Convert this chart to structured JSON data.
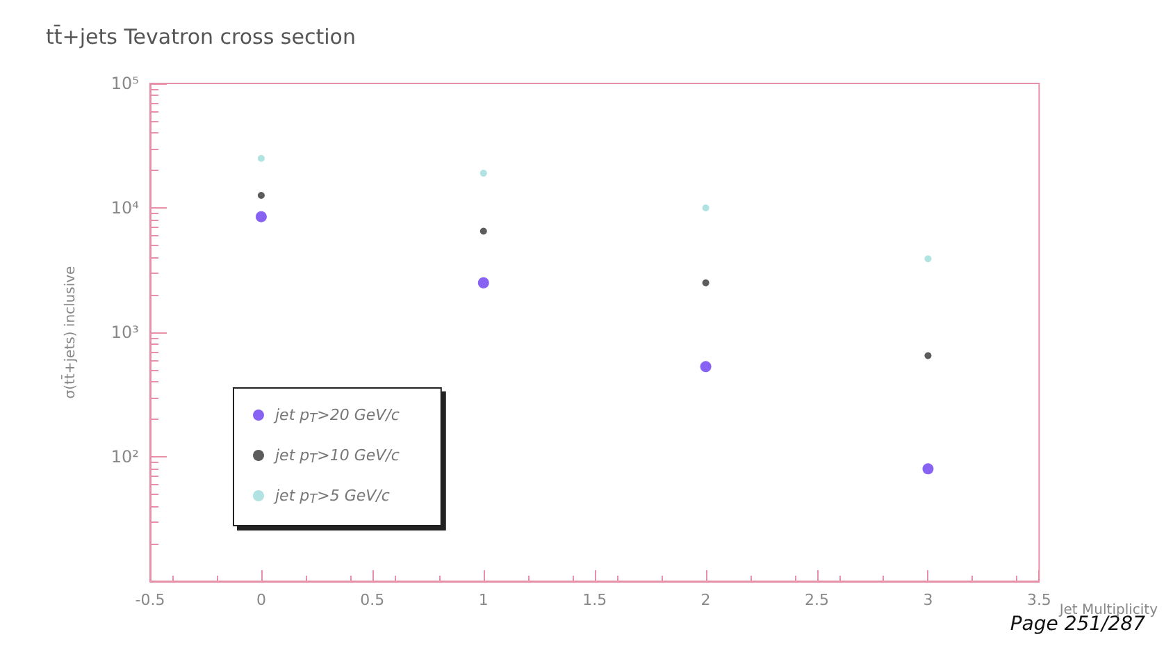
{
  "chart_data": {
    "type": "scatter",
    "title": "tt̄+jets Tevatron cross section",
    "xlabel": "Jet Multiplicity",
    "ylabel": "σ(tt̄+jets) inclusive",
    "x": [
      0,
      1,
      2,
      3
    ],
    "series": [
      {
        "name": "jet p$_{T}$>20 GeV/c",
        "color": "#6a3cf0",
        "values": [
          8500,
          2500,
          530,
          80
        ]
      },
      {
        "name": "jet p$_{T}$>10 GeV/c",
        "color": "#333333",
        "values": [
          12600,
          6500,
          2500,
          650
        ]
      },
      {
        "name": "jet p$_{T}$>5 GeV/c",
        "color": "#9fdcdc",
        "values": [
          25000,
          19000,
          10000,
          3900
        ]
      }
    ],
    "log": "y",
    "xlim": [
      -0.5,
      3.5
    ],
    "xticks": [
      -0.5,
      0,
      0.5,
      1,
      1.5,
      2,
      2.5,
      3,
      3.5
    ],
    "ylim": [
      10,
      100000
    ],
    "yticks": [
      {
        "value": 10,
        "label": null
      },
      {
        "value": 100,
        "label": "10²"
      },
      {
        "value": 1000,
        "label": "10³"
      },
      {
        "value": 10000,
        "label": "10⁴"
      },
      {
        "value": 100000,
        "label": "10⁵"
      }
    ],
    "grid": false,
    "legend": "bottom left",
    "marker": "circle",
    "annotations": [
      "Page 251/287"
    ]
  }
}
